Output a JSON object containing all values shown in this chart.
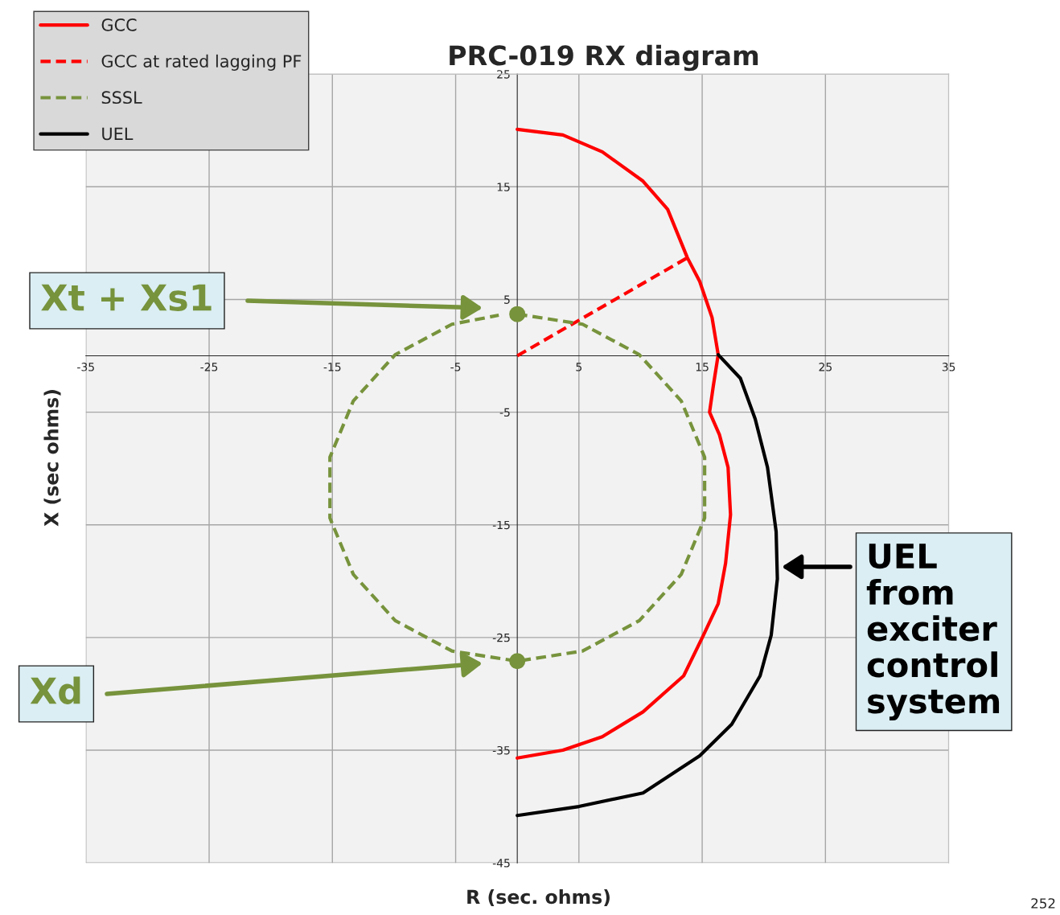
{
  "chart_data": {
    "type": "line",
    "title": "PRC-019 RX diagram",
    "xlabel": "R (sec. ohms)",
    "ylabel": "X (sec ohms)",
    "xlim": [
      -35,
      35
    ],
    "ylim": [
      -45,
      25
    ],
    "xticks": [
      -35,
      -25,
      -15,
      -5,
      5,
      15,
      25,
      35
    ],
    "yticks": [
      -45,
      -35,
      -25,
      -15,
      -5,
      5,
      15,
      25
    ],
    "grid": true,
    "legend": "top left",
    "series": [
      {
        "name": "GCC",
        "line_style": "solid",
        "color": "#ff0000",
        "x": [
          0,
          3.7,
          6.9,
          10.2,
          12.2,
          13.8,
          14.8,
          15.8,
          16.3,
          15.9,
          15.6,
          16.4,
          17.1,
          17.3,
          16.9,
          16.3,
          15.1,
          13.5,
          10.2,
          6.9,
          3.7,
          0
        ],
        "values": [
          20.1,
          19.6,
          18.1,
          15.5,
          13.0,
          8.7,
          6.6,
          3.4,
          0.1,
          -2.7,
          -5.0,
          -7.0,
          -9.9,
          -14.1,
          -18.4,
          -22.0,
          -24.8,
          -28.4,
          -31.6,
          -33.8,
          -35.0,
          -35.7
        ]
      },
      {
        "name": "GCC at rated lagging PF",
        "line_style": "dashed",
        "color": "#ff0000",
        "x": [
          0,
          13.8
        ],
        "values": [
          0,
          8.7
        ]
      },
      {
        "name": "SSSL",
        "line_style": "dashed",
        "color": "#77933c",
        "x": [
          0,
          5.3,
          9.9,
          13.3,
          15.2,
          15.2,
          13.3,
          9.9,
          5.3,
          0,
          -5.3,
          -9.9,
          -13.3,
          -15.2,
          -15.2,
          -13.3,
          -9.9,
          -5.3,
          -1.5
        ],
        "values": [
          3.7,
          2.8,
          0.1,
          -4.0,
          -9.0,
          -14.4,
          -19.4,
          -23.5,
          -26.2,
          -27.1,
          -26.2,
          -23.5,
          -19.4,
          -14.4,
          -9.0,
          -4.0,
          0.1,
          2.8,
          3.6
        ]
      },
      {
        "name": "UEL",
        "line_style": "solid",
        "color": "#000000",
        "x": [
          16.3,
          18.1,
          19.3,
          20.3,
          21.0,
          21.1,
          20.6,
          19.7,
          17.4,
          14.8,
          10.2,
          5.0,
          0
        ],
        "values": [
          0.1,
          -2.0,
          -5.6,
          -9.9,
          -15.6,
          -19.8,
          -24.8,
          -28.4,
          -32.7,
          -35.5,
          -38.8,
          -40.0,
          -40.8
        ]
      },
      {
        "type": "scatter",
        "marker": "circle",
        "color": "#77933c",
        "x": [
          0,
          0
        ],
        "values": [
          3.7,
          -27.1
        ]
      }
    ],
    "annotations": [
      "Xt + Xs1",
      "Xd",
      "UEL\nfrom\nexciter\ncontrol\nsystem",
      "252"
    ]
  }
}
